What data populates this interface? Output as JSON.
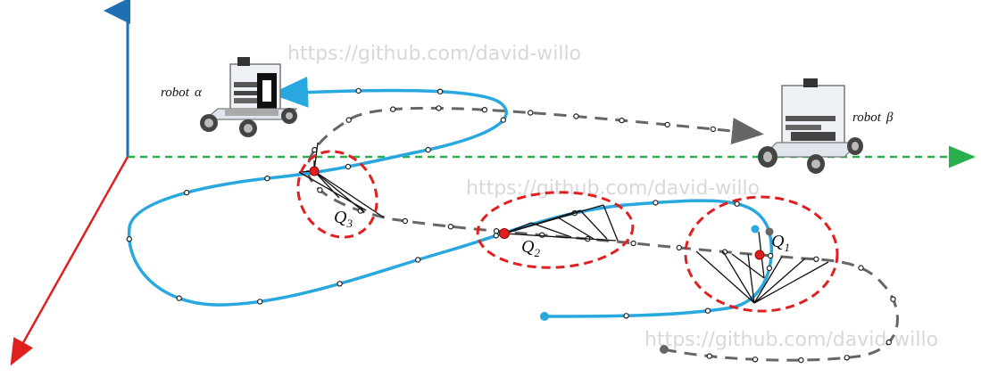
{
  "watermarks": [
    "https://github.com/david-willo",
    "https://github.com/david-willo",
    "https://github.com/david-willo"
  ],
  "robots": [
    {
      "name": "robot",
      "symbol": "α"
    },
    {
      "name": "robot",
      "symbol": "β"
    }
  ],
  "regions": [
    {
      "letter": "Q",
      "subscript": "3"
    },
    {
      "letter": "Q",
      "subscript": "2"
    },
    {
      "letter": "Q",
      "subscript": "1"
    }
  ],
  "colors": {
    "trajectory_alpha": "#29a8e0",
    "trajectory_beta": "#666666",
    "axis_x": "#2ab04a",
    "axis_y": "#1f6fb5",
    "axis_z": "#e02020",
    "region": "#e02020",
    "fan_lines": "#111111"
  }
}
